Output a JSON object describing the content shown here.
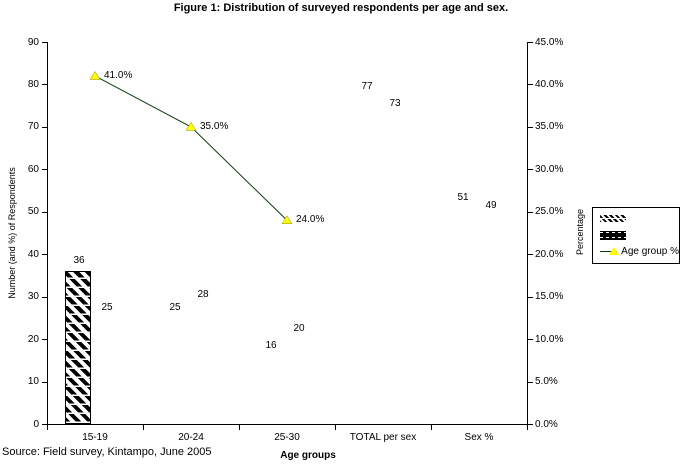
{
  "title": "Figure 1: Distribution of surveyed respondents per age and sex.",
  "source_note": "Source: Field survey, Kintampo, June 2005",
  "axes": {
    "x_title": "Age groups",
    "y_left_title": "Number (and %) of Respondents",
    "y_right_title": "Percentage",
    "y_left_ticks": [
      "0",
      "10",
      "20",
      "30",
      "40",
      "50",
      "60",
      "70",
      "80",
      "90"
    ],
    "y_right_ticks": [
      "0.0%",
      "5.0%",
      "10.0%",
      "15.0%",
      "20.0%",
      "25.0%",
      "30.0%",
      "35.0%",
      "40.0%",
      "45.0%"
    ],
    "x_ticks": [
      "15-19",
      "20-24",
      "25-30",
      "TOTAL per sex",
      "Sex %"
    ]
  },
  "legend": {
    "entries": [
      {
        "label": "",
        "swatch": "hatched-diagonal-swatch"
      },
      {
        "label": "",
        "swatch": "black-white-dash-swatch"
      },
      {
        "label": "Age group %",
        "swatch": "line-yellow-triangle-marker"
      }
    ]
  },
  "colors": {
    "line": "#0d3a0d",
    "marker": "#ffff00",
    "marker_edge": "#8a8a00",
    "axis": "#000000",
    "background": "#ffffff"
  },
  "chart_data": {
    "type": "bar",
    "subtype": "combo-bar-line-dual-axis",
    "title": "Figure 1: Distribution of surveyed respondents per age and sex.",
    "xlabel": "Age groups",
    "ylabel_left": "Number (and %) of Respondents",
    "ylabel_right": "Percentage",
    "categories": [
      "15-19",
      "20-24",
      "25-30",
      "TOTAL per sex",
      "Sex %"
    ],
    "series": [
      {
        "name": "",
        "type": "bar",
        "axis": "left",
        "values": [
          36,
          25,
          16,
          77,
          51
        ],
        "bar_visible": [
          true,
          false,
          false,
          false,
          false
        ],
        "fill": "hatched-diagonal"
      },
      {
        "name": "",
        "type": "bar",
        "axis": "left",
        "values": [
          25,
          28,
          20,
          73,
          49
        ],
        "bar_visible": [
          false,
          false,
          false,
          false,
          false
        ],
        "fill": "none-labels-only"
      },
      {
        "name": "Age group %",
        "type": "line",
        "axis": "right",
        "values": [
          41.0,
          35.0,
          24.0,
          null,
          null
        ],
        "point_labels": [
          "41.0%",
          "35.0%",
          "24.0%"
        ]
      }
    ],
    "ylim_left": [
      0,
      90
    ],
    "ytick_step_left": 10,
    "ylim_right": [
      0,
      45
    ],
    "ytick_step_right": 5,
    "grid": false,
    "legend_position": "right"
  }
}
